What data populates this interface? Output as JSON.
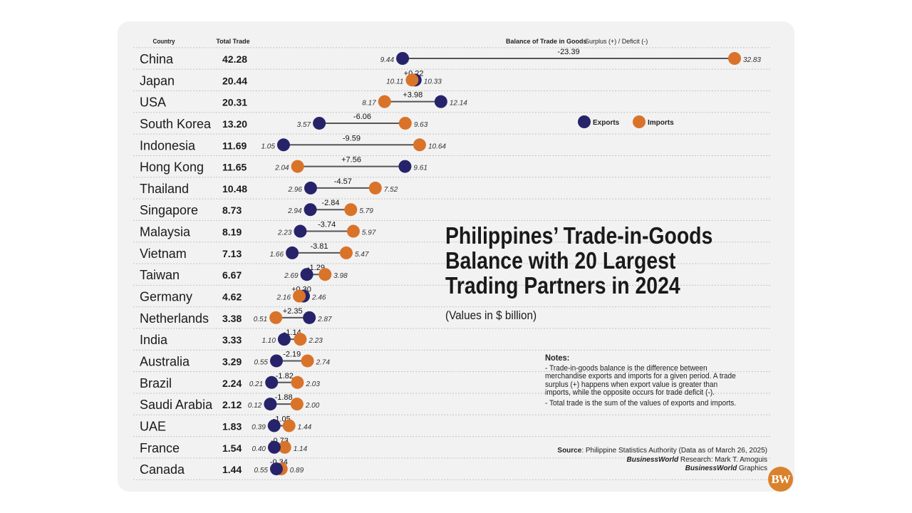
{
  "chart_data": {
    "type": "dumbbell",
    "title": "Philippines’ Trade-in-Goods Balance with 20 Largest Trading Partners in 2024",
    "subtitle": "(Values in $ billion)",
    "column_headers": {
      "country": "Country",
      "total": "Total Trade",
      "balance": "Balance of Trade in Goods",
      "balance_note": "Surplus (+) / Deficit (-)"
    },
    "legend": [
      {
        "name": "Exports",
        "color": "#27236b"
      },
      {
        "name": "Imports",
        "color": "#d9732a"
      }
    ],
    "legend_position": "top-right",
    "rows": [
      {
        "country": "China",
        "total": "42.28",
        "exports": 9.44,
        "imports": 32.83,
        "exports_label": "9.44",
        "imports_label": "32.83",
        "balance": "-23.39"
      },
      {
        "country": "Japan",
        "total": "20.44",
        "exports": 10.33,
        "imports": 10.11,
        "exports_label": "10.33",
        "imports_label": "10.11",
        "balance": "+0.22"
      },
      {
        "country": "USA",
        "total": "20.31",
        "exports": 12.14,
        "imports": 8.17,
        "exports_label": "12.14",
        "imports_label": "8.17",
        "balance": "+3.98"
      },
      {
        "country": "South Korea",
        "total": "13.20",
        "exports": 3.57,
        "imports": 9.63,
        "exports_label": "3.57",
        "imports_label": "9.63",
        "balance": "-6.06"
      },
      {
        "country": "Indonesia",
        "total": "11.69",
        "exports": 1.05,
        "imports": 10.64,
        "exports_label": "1.05",
        "imports_label": "10.64",
        "balance": "-9.59"
      },
      {
        "country": "Hong Kong",
        "total": "11.65",
        "exports": 9.61,
        "imports": 2.04,
        "exports_label": "9.61",
        "imports_label": "2.04",
        "balance": "+7.56"
      },
      {
        "country": "Thailand",
        "total": "10.48",
        "exports": 2.96,
        "imports": 7.52,
        "exports_label": "2.96",
        "imports_label": "7.52",
        "balance": "-4.57"
      },
      {
        "country": "Singapore",
        "total": "8.73",
        "exports": 2.94,
        "imports": 5.79,
        "exports_label": "2.94",
        "imports_label": "5.79",
        "balance": "-2.84"
      },
      {
        "country": "Malaysia",
        "total": "8.19",
        "exports": 2.23,
        "imports": 5.97,
        "exports_label": "2.23",
        "imports_label": "5.97",
        "balance": "-3.74"
      },
      {
        "country": "Vietnam",
        "total": "7.13",
        "exports": 1.66,
        "imports": 5.47,
        "exports_label": "1.66",
        "imports_label": "5.47",
        "balance": "-3.81"
      },
      {
        "country": "Taiwan",
        "total": "6.67",
        "exports": 2.69,
        "imports": 3.98,
        "exports_label": "2.69",
        "imports_label": "3.98",
        "balance": "-1.29"
      },
      {
        "country": "Germany",
        "total": "4.62",
        "exports": 2.46,
        "imports": 2.16,
        "exports_label": "2.46",
        "imports_label": "2.16",
        "balance": "+0.30"
      },
      {
        "country": "Netherlands",
        "total": "3.38",
        "exports": 2.87,
        "imports": 0.51,
        "exports_label": "2.87",
        "imports_label": "0.51",
        "balance": "+2.35"
      },
      {
        "country": "India",
        "total": "3.33",
        "exports": 1.1,
        "imports": 2.23,
        "exports_label": "1.10",
        "imports_label": "2.23",
        "balance": "-1.14"
      },
      {
        "country": "Australia",
        "total": "3.29",
        "exports": 0.55,
        "imports": 2.74,
        "exports_label": "0.55",
        "imports_label": "2.74",
        "balance": "-2.19"
      },
      {
        "country": "Brazil",
        "total": "2.24",
        "exports": 0.21,
        "imports": 2.03,
        "exports_label": "0.21",
        "imports_label": "2.03",
        "balance": "-1.82"
      },
      {
        "country": "Saudi Arabia",
        "total": "2.12",
        "exports": 0.12,
        "imports": 2.0,
        "exports_label": "0.12",
        "imports_label": "2.00",
        "balance": "-1.88"
      },
      {
        "country": "UAE",
        "total": "1.83",
        "exports": 0.39,
        "imports": 1.44,
        "exports_label": "0.39",
        "imports_label": "1.44",
        "balance": "-1.05"
      },
      {
        "country": "France",
        "total": "1.54",
        "exports": 0.4,
        "imports": 1.14,
        "exports_label": "0.40",
        "imports_label": "1.14",
        "balance": "-0.73"
      },
      {
        "country": "Canada",
        "total": "1.44",
        "exports": 0.55,
        "imports": 0.89,
        "exports_label": "0.55",
        "imports_label": "0.89",
        "balance": "-0.34"
      }
    ]
  },
  "notes": {
    "heading": "Notes:",
    "items": [
      "- Trade-in-goods balance is the difference between merchandise exports and imports for a given period. A trade surplus (+) happens when export value is greater than imports, while the opposite occurs for trade deficit (-).",
      "- Total trade is the sum of the values of exports and imports."
    ]
  },
  "credits": {
    "source_label": "Source",
    "source_text": ": Philippine Statistics Authority (Data as of March 26, 2025)",
    "research_brand": "BusinessWorld",
    "research_text": " Research: Mark T. Amoguis",
    "graphics_brand": "BusinessWorld",
    "graphics_text": " Graphics",
    "logo": "BW"
  }
}
